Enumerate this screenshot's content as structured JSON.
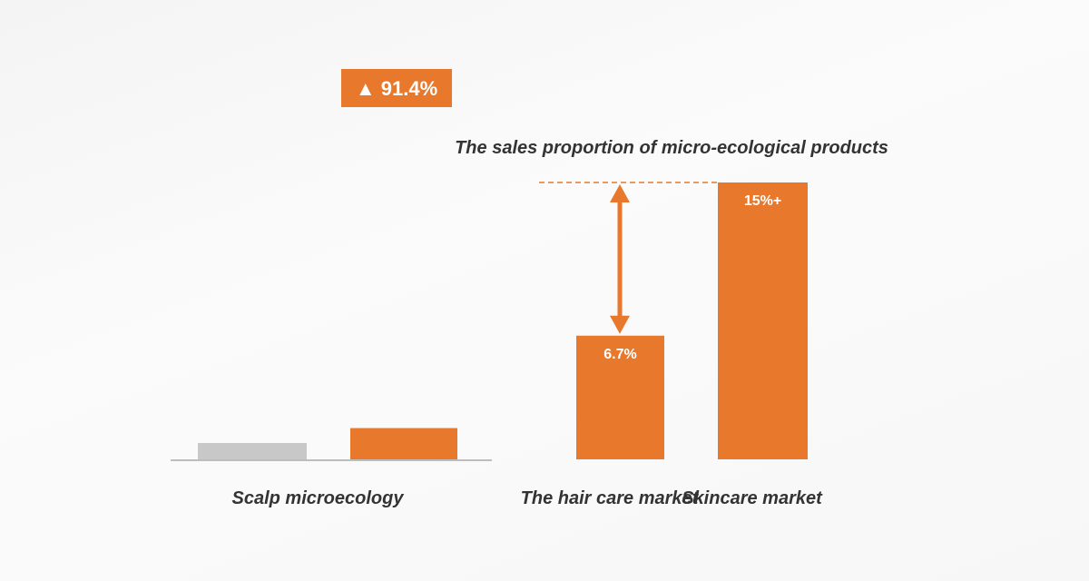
{
  "colors": {
    "accent": "#E8782B",
    "neutral": "#C8C8C8",
    "baseline": "#BDBDBD",
    "text": "#333333"
  },
  "chart_data": [
    {
      "type": "bar",
      "categories": [
        "",
        ""
      ],
      "xlabel": "Scalp microecology",
      "badge": "▲ 91.4%",
      "values": [
        1.0,
        1.914
      ],
      "colors": [
        "#C8C8C8",
        "#E8782B"
      ]
    },
    {
      "type": "bar",
      "title": "The sales proportion of micro-ecological products",
      "categories": [
        "The hair care market",
        "Skincare market"
      ],
      "values": [
        6.7,
        15
      ],
      "data_labels": [
        "6.7%",
        "15%+"
      ],
      "ylim": [
        0,
        15
      ],
      "colors": [
        "#E8782B",
        "#E8782B"
      ]
    }
  ]
}
